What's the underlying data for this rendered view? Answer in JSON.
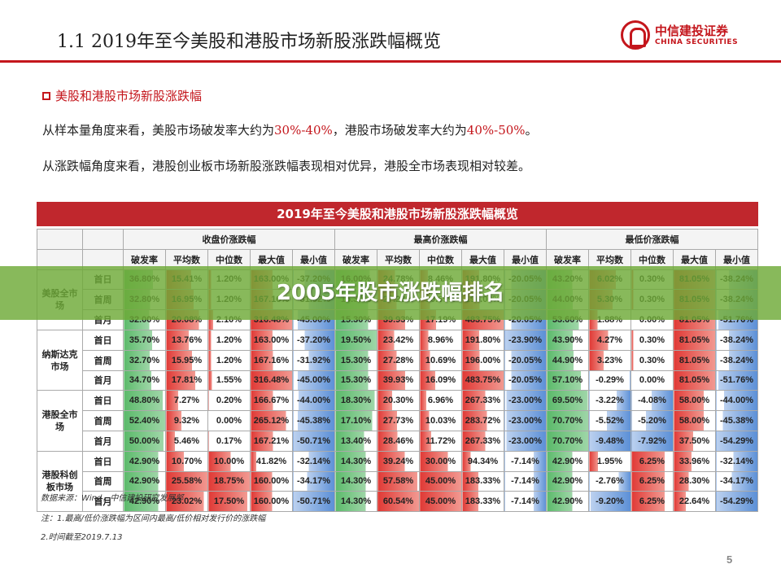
{
  "header": {
    "title": "1.1  2019年至今美股和港股市场新股涨跌幅概览",
    "logo_cn": "中信建投证券",
    "logo_en": "CHINA SECURITIES"
  },
  "section": {
    "title": "美股和港股市场新股涨跌幅"
  },
  "para1": {
    "a": "从样本量角度来看，美股市场破发率大约为",
    "b": "30%-40%",
    "c": "，港股市场破发率大约为",
    "d": "40%-50%",
    "e": "。"
  },
  "para2": "从涨跌幅角度来看，港股创业板市场新股涨跌幅表现相对优异，港股全市场表现相对较差。",
  "table": {
    "title": "2019年至今美股和港股市场新股涨跌幅概览",
    "groups": [
      "收盘价涨跌幅",
      "最高价涨跌幅",
      "最低价涨跌幅"
    ],
    "cols": [
      "破发率",
      "平均数",
      "中位数",
      "最大值",
      "最小值"
    ],
    "markets": [
      {
        "name": "美股全市场",
        "rows": [
          {
            "p": "首日",
            "v": [
              "36.80%",
              "15.41%",
              "1.20%",
              "163.00%",
              "-37.20%",
              "16.00%",
              "24.78%",
              "8.46%",
              "191.80%",
              "-20.05%",
              "43.20%",
              "6.02%",
              "0.30%",
              "81.05%",
              "-38.24%"
            ]
          },
          {
            "p": "首周",
            "v": [
              "32.80%",
              "16.95%",
              "1.20%",
              "167.16%",
              "-31.92%",
              "15.30%",
              "27.28%",
              "10.69%",
              "196.00%",
              "-20.05%",
              "44.00%",
              "5.30%",
              "0.30%",
              "81.05%",
              "-38.24%"
            ]
          },
          {
            "p": "首月",
            "v": [
              "32.00%",
              "20.08%",
              "2.10%",
              "316.48%",
              "-45.00%",
              "15.30%",
              "39.93%",
              "17.19%",
              "483.75%",
              "-20.05%",
              "53.60%",
              "1.88%",
              "0.00%",
              "81.05%",
              "-51.76%"
            ]
          }
        ]
      },
      {
        "name": "纳斯达克市场",
        "rows": [
          {
            "p": "首日",
            "v": [
              "35.70%",
              "13.76%",
              "1.20%",
              "163.00%",
              "-37.20%",
              "19.50%",
              "23.42%",
              "8.96%",
              "191.80%",
              "-23.90%",
              "43.90%",
              "4.27%",
              "0.30%",
              "81.05%",
              "-38.24%"
            ]
          },
          {
            "p": "首周",
            "v": [
              "32.70%",
              "15.95%",
              "1.20%",
              "167.16%",
              "-31.92%",
              "15.30%",
              "27.28%",
              "10.69%",
              "196.00%",
              "-20.05%",
              "44.90%",
              "3.23%",
              "0.30%",
              "81.05%",
              "-38.24%"
            ]
          },
          {
            "p": "首月",
            "v": [
              "34.70%",
              "17.81%",
              "1.55%",
              "316.48%",
              "-45.00%",
              "15.30%",
              "39.93%",
              "16.09%",
              "483.75%",
              "-20.05%",
              "57.10%",
              "-0.29%",
              "0.00%",
              "81.05%",
              "-51.76%"
            ]
          }
        ]
      },
      {
        "name": "港股全市场",
        "rows": [
          {
            "p": "首日",
            "v": [
              "48.80%",
              "7.27%",
              "0.20%",
              "166.67%",
              "-44.00%",
              "18.30%",
              "20.30%",
              "6.96%",
              "267.33%",
              "-23.00%",
              "69.50%",
              "-3.22%",
              "-4.08%",
              "58.00%",
              "-44.00%"
            ]
          },
          {
            "p": "首周",
            "v": [
              "52.40%",
              "9.32%",
              "0.00%",
              "265.12%",
              "-45.38%",
              "17.10%",
              "27.73%",
              "10.03%",
              "283.72%",
              "-23.00%",
              "70.70%",
              "-5.52%",
              "-5.20%",
              "58.00%",
              "-45.38%"
            ]
          },
          {
            "p": "首月",
            "v": [
              "50.00%",
              "5.46%",
              "0.17%",
              "167.21%",
              "-50.71%",
              "13.40%",
              "28.46%",
              "11.72%",
              "267.33%",
              "-23.00%",
              "70.70%",
              "-9.48%",
              "-7.92%",
              "37.50%",
              "-54.29%"
            ]
          }
        ]
      },
      {
        "name": "港股科创板市场",
        "rows": [
          {
            "p": "首日",
            "v": [
              "42.90%",
              "10.70%",
              "10.00%",
              "41.82%",
              "-32.14%",
              "14.30%",
              "39.24%",
              "30.00%",
              "94.34%",
              "-7.14%",
              "42.90%",
              "1.95%",
              "6.25%",
              "33.96%",
              "-32.14%"
            ]
          },
          {
            "p": "首周",
            "v": [
              "42.90%",
              "25.58%",
              "18.75%",
              "160.00%",
              "-34.17%",
              "14.30%",
              "57.58%",
              "45.00%",
              "183.33%",
              "-7.14%",
              "42.90%",
              "-2.76%",
              "6.25%",
              "28.30%",
              "-34.17%"
            ]
          },
          {
            "p": "首月",
            "v": [
              "42.90%",
              "23.02%",
              "17.50%",
              "160.00%",
              "-50.71%",
              "14.30%",
              "60.54%",
              "45.00%",
              "183.33%",
              "-7.14%",
              "42.90%",
              "-9.20%",
              "6.25%",
              "22.64%",
              "-54.29%"
            ]
          }
        ]
      }
    ]
  },
  "notes": [
    "数据来源：Wind，中信建投研究发展部",
    "注：1.最高/低价涨跌幅为区间内最高/低价相对发行价的涨跌幅",
    "2.时间截至2019.7.13"
  ],
  "page_number": "5",
  "overlay_text": "2005年股市涨跌幅排名"
}
